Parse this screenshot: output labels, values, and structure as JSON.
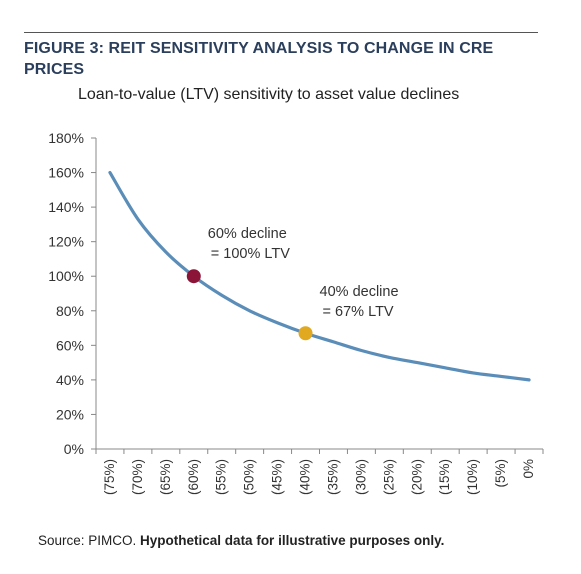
{
  "figure": {
    "title": "FIGURE 3: REIT SENSITIVITY ANALYSIS TO CHANGE IN CRE PRICES",
    "source_label": "Source: PIMCO.",
    "source_note": "Hypothetical data for illustrative purposes only."
  },
  "colors": {
    "title": "#2b3f5c",
    "line": "#5b8db9",
    "marker_60": "#8b1538",
    "marker_40": "#e0a91f"
  },
  "chart_data": {
    "type": "line",
    "title": "Loan-to-value (LTV) sensitivity to asset value declines",
    "xlabel": "",
    "ylabel": "",
    "categories": [
      "(75%)",
      "(70%)",
      "(65%)",
      "(60%)",
      "(55%)",
      "(50%)",
      "(45%)",
      "(40%)",
      "(35%)",
      "(30%)",
      "(25%)",
      "(20%)",
      "(15%)",
      "(10%)",
      "(5%)",
      "0%"
    ],
    "series": [
      {
        "values": [
          160,
          133,
          114,
          100,
          89,
          80,
          73,
          67,
          62,
          57,
          53,
          50,
          47,
          44,
          42,
          40
        ]
      }
    ],
    "ylim": [
      0,
      180
    ],
    "yticks": [
      "0%",
      "20%",
      "40%",
      "60%",
      "80%",
      "100%",
      "120%",
      "140%",
      "160%",
      "180%"
    ],
    "grid": false,
    "annotations": [
      {
        "category": "(60%)",
        "value": 100,
        "text_line1": "60% decline",
        "text_line2": "= 100% LTV",
        "color_key": "marker_60"
      },
      {
        "category": "(40%)",
        "value": 67,
        "text_line1": "40% decline",
        "text_line2": "= 67% LTV",
        "color_key": "marker_40"
      }
    ]
  }
}
